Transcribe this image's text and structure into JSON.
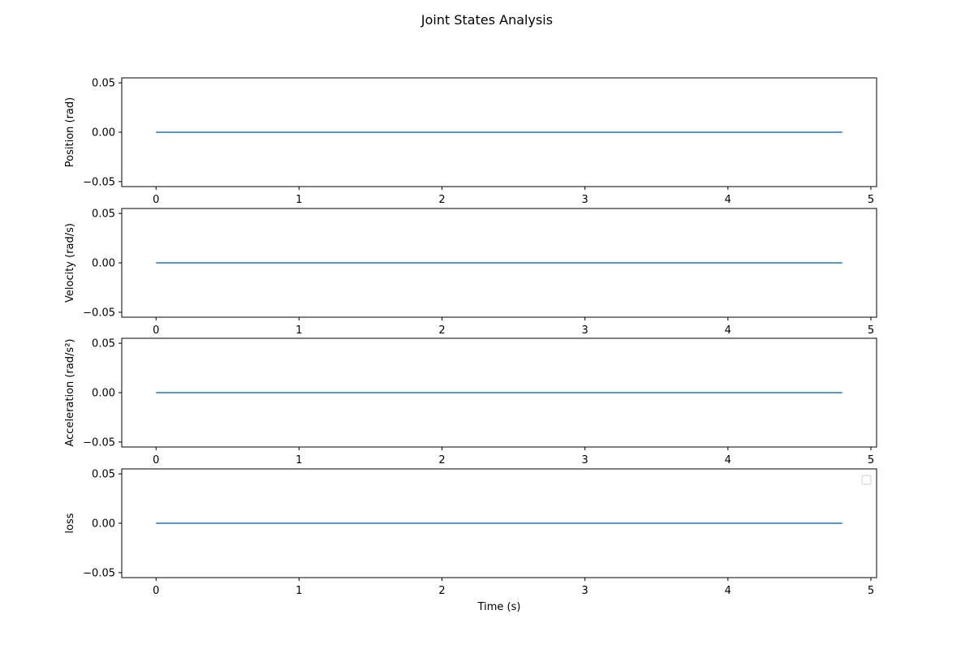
{
  "chart_data": {
    "type": "line",
    "title": "Joint States Analysis",
    "colors": {
      "series": "#1f77b4",
      "axes": "#000000",
      "background": "#ffffff"
    },
    "grid": false,
    "subplots": [
      {
        "ylabel": "Position (rad)",
        "xlabel": "",
        "xlim": [
          -0.24,
          5.04
        ],
        "ylim": [
          -0.055,
          0.055
        ],
        "xticks": [
          0,
          1,
          2,
          3,
          4,
          5
        ],
        "yticks": [
          0.05,
          0.0,
          -0.05
        ],
        "ytick_labels": [
          "0.05",
          "0.00",
          "−0.05"
        ],
        "series": [
          {
            "x": [
              0,
              4.8
            ],
            "y": [
              0.0,
              0.0
            ]
          }
        ],
        "legend": false
      },
      {
        "ylabel": "Velocity (rad/s)",
        "xlabel": "",
        "xlim": [
          -0.24,
          5.04
        ],
        "ylim": [
          -0.055,
          0.055
        ],
        "xticks": [
          0,
          1,
          2,
          3,
          4,
          5
        ],
        "yticks": [
          0.05,
          0.0,
          -0.05
        ],
        "ytick_labels": [
          "0.05",
          "0.00",
          "−0.05"
        ],
        "series": [
          {
            "x": [
              0,
              4.8
            ],
            "y": [
              0.0,
              0.0
            ]
          }
        ],
        "legend": false
      },
      {
        "ylabel": "Acceleration (rad/s²)",
        "xlabel": "",
        "xlim": [
          -0.24,
          5.04
        ],
        "ylim": [
          -0.055,
          0.055
        ],
        "xticks": [
          0,
          1,
          2,
          3,
          4,
          5
        ],
        "yticks": [
          0.05,
          0.0,
          -0.05
        ],
        "ytick_labels": [
          "0.05",
          "0.00",
          "−0.05"
        ],
        "series": [
          {
            "x": [
              0,
              4.8
            ],
            "y": [
              0.0,
              0.0
            ]
          }
        ],
        "legend": false
      },
      {
        "ylabel": "loss",
        "xlabel": "Time (s)",
        "xlim": [
          -0.24,
          5.04
        ],
        "ylim": [
          -0.055,
          0.055
        ],
        "xticks": [
          0,
          1,
          2,
          3,
          4,
          5
        ],
        "yticks": [
          0.05,
          0.0,
          -0.05
        ],
        "ytick_labels": [
          "0.05",
          "0.00",
          "−0.05"
        ],
        "series": [
          {
            "x": [
              0,
              4.8
            ],
            "y": [
              0.0,
              0.0
            ]
          }
        ],
        "legend": true,
        "legend_placement": "top-right",
        "legend_entries": []
      }
    ]
  }
}
